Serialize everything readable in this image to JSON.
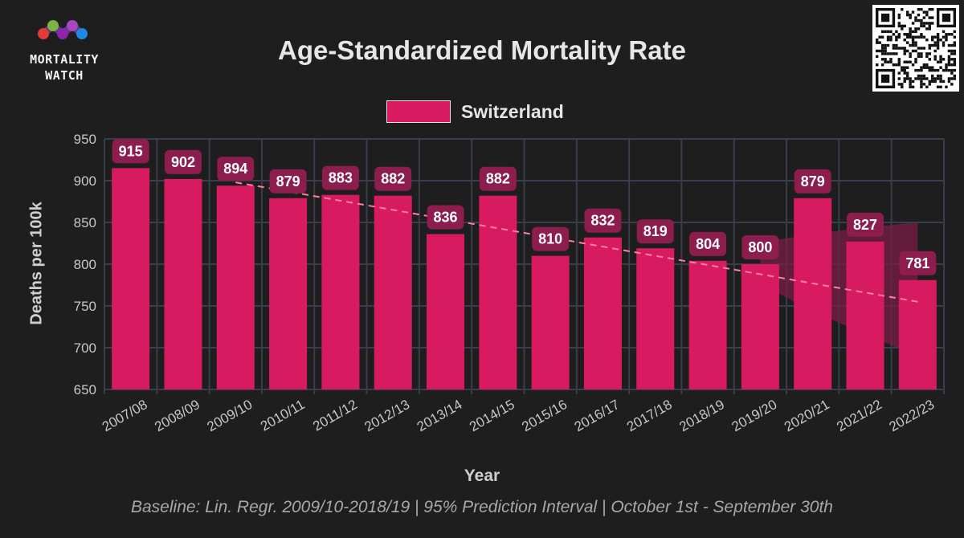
{
  "brand": {
    "logo_text": "MORTALITY\nWATCH"
  },
  "colors": {
    "bar": "#d81b60",
    "label_bg": "#8c1d4d",
    "baseline": "#ff7fa6",
    "pi_band": "#7a1e44",
    "grid": "#3a3d4d",
    "background": "#1e1e1e"
  },
  "chart_data": {
    "type": "bar",
    "title": "Age-Standardized Mortality Rate",
    "xlabel": "Year",
    "ylabel": "Deaths per 100k",
    "ylim": [
      650,
      950
    ],
    "yticks": [
      650,
      700,
      750,
      800,
      850,
      900,
      950
    ],
    "legend_position": "top",
    "grid": true,
    "categories": [
      "2007/08",
      "2008/09",
      "2009/10",
      "2010/11",
      "2011/12",
      "2012/13",
      "2013/14",
      "2014/15",
      "2015/16",
      "2016/17",
      "2017/18",
      "2018/19",
      "2019/20",
      "2020/21",
      "2021/22",
      "2022/23"
    ],
    "series": [
      {
        "name": "Switzerland",
        "values": [
          915,
          902,
          894,
          879,
          883,
          882,
          836,
          882,
          810,
          832,
          819,
          804,
          800,
          879,
          827,
          781
        ]
      }
    ],
    "baseline": {
      "method": "Lin. Regr.",
      "from_category": "2009/10",
      "to_category": "2022/23",
      "values": [
        898,
        887,
        876,
        865,
        854,
        843,
        832,
        821,
        810,
        799,
        788,
        777,
        766,
        755
      ]
    },
    "prediction_interval": {
      "level": "95%",
      "categories": [
        "2019/20",
        "2020/21",
        "2021/22",
        "2022/23"
      ],
      "upper": [
        826,
        836,
        844,
        850
      ],
      "lower": [
        777,
        743,
        717,
        689
      ]
    }
  },
  "footnote": "Baseline: Lin. Regr. 2009/10-2018/19 | 95% Prediction Interval | October 1st - September 30th"
}
